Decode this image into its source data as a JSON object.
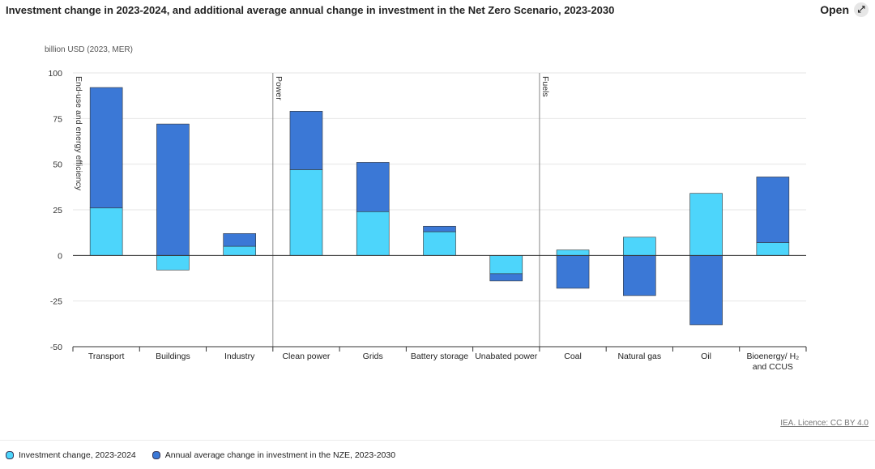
{
  "chart_data": {
    "type": "bar",
    "stacked": true,
    "title": "Investment change in 2023-2024, and additional average annual change in investment in the Net Zero Scenario, 2023-2030",
    "button": "Open",
    "unit_label": "billion USD (2023, MER)",
    "source": "IEA. Licence: CC BY 4.0",
    "sections": [
      "End-use and energy efficiency",
      "Power",
      "Fuels"
    ],
    "categories": [
      "Transport",
      "Buildings",
      "Industry",
      "Clean power",
      "Grids",
      "Battery storage",
      "Unabated power",
      "Coal",
      "Natural gas",
      "Oil",
      "Bioenergy/ H₂ and CCUS"
    ],
    "series": [
      {
        "name": "Investment change, 2023-2024",
        "color": "#4dd5fb",
        "values": [
          26,
          -8,
          5,
          47,
          24,
          13,
          -10,
          3,
          10,
          34,
          7
        ]
      },
      {
        "name": "Annual average change in investment in the NZE, 2023-2030",
        "color": "#3b78d6",
        "values": [
          66,
          72,
          7,
          32,
          27,
          3,
          -4,
          -18,
          -22,
          -38,
          36
        ]
      }
    ],
    "ylim": [
      -50,
      100
    ],
    "yticks": [
      -50,
      -25,
      0,
      25,
      50,
      75,
      100
    ],
    "grid": true
  }
}
